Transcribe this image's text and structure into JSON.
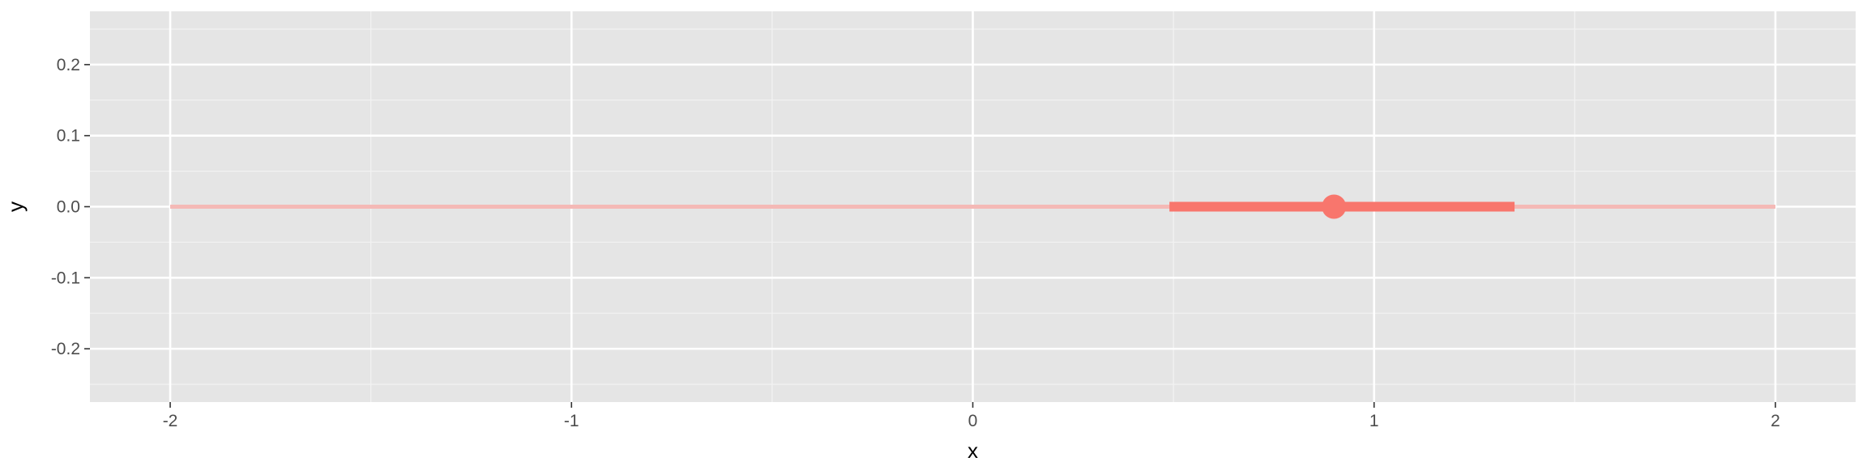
{
  "chart_data": {
    "type": "pointrange",
    "xlabel": "x",
    "ylabel": "y",
    "xlim": [
      -2.2,
      2.2
    ],
    "ylim": [
      -0.275,
      0.275
    ],
    "x_ticks": [
      -2,
      -1,
      0,
      1,
      2
    ],
    "x_tick_labels": [
      "-2",
      "-1",
      "0",
      "1",
      "2"
    ],
    "x_minor_ticks": [
      -1.5,
      -0.5,
      0.5,
      1.5
    ],
    "y_ticks": [
      -0.2,
      -0.1,
      0.0,
      0.1,
      0.2
    ],
    "y_tick_labels": [
      "-0.2",
      "-0.1",
      "0.0",
      "0.1",
      "0.2"
    ],
    "y_minor_ticks": [
      -0.25,
      -0.15,
      -0.05,
      0.05,
      0.15,
      0.25
    ],
    "grid": true,
    "legend": "none",
    "series": [
      {
        "y": 0.0,
        "point": 0.9,
        "inner_interval": [
          0.49,
          1.35
        ],
        "outer_interval": [
          -2.0,
          2.0
        ],
        "color": "#F8766D",
        "outer_color": "#F4B9B6"
      }
    ],
    "colors": {
      "panel_background": "#E5E5E5",
      "grid_major": "#FFFFFF",
      "grid_minor": "#F2F2F2",
      "tick_color": "#333333",
      "text_color": "#4D4D4D",
      "axis_title_color": "#000000"
    }
  }
}
